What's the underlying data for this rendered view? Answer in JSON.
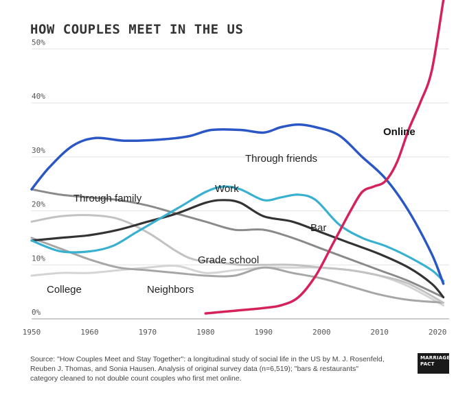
{
  "title": "HOW COUPLES MEET IN THE US",
  "source_text": "Source: \"How Couples Meet and Stay Together\": a longitudinal study of social life in the US by M. J. Rosenfeld, Reuben J. Thomas, and Sonia Hausen. Analysis of original survey data (n=6,519); \"bars & restaurants\" category cleaned to not double count couples who first met online.",
  "logo": {
    "line1": "MARRIAGE",
    "line2": "PACT"
  },
  "chart_data": {
    "type": "line",
    "title": "HOW COUPLES MEET IN THE US",
    "xlabel": "",
    "ylabel": "",
    "xlim": [
      1950,
      2022
    ],
    "ylim": [
      0,
      55
    ],
    "x_ticks": [
      1950,
      1960,
      1970,
      1980,
      1990,
      2000,
      2010,
      2020
    ],
    "y_ticks": [
      0,
      10,
      20,
      30,
      40,
      50
    ],
    "y_tick_labels": [
      "0%",
      "10%",
      "20%",
      "30%",
      "40%",
      "50%"
    ],
    "grid": "horizontal",
    "series": [
      {
        "name": "Online",
        "label": "Online",
        "color": "#d6225a",
        "width": 3.5,
        "bold": true,
        "x": [
          1980,
          1985,
          1990,
          1993,
          1996,
          1999,
          2002,
          2005,
          2007,
          2009,
          2011,
          2013,
          2015,
          2017,
          2019,
          2021
        ],
        "y": [
          1,
          1.5,
          2,
          2.5,
          4,
          8,
          14,
          20,
          23.5,
          24.5,
          25.5,
          29,
          35,
          40,
          46,
          59
        ]
      },
      {
        "name": "Through friends",
        "label": "Through friends",
        "color": "#2a56c6",
        "width": 3.5,
        "x": [
          1950,
          1953,
          1957,
          1961,
          1966,
          1972,
          1977,
          1981,
          1986,
          1990,
          1993,
          1996,
          1999,
          2003,
          2007,
          2011,
          2015,
          2019,
          2021
        ],
        "y": [
          24,
          28,
          32,
          33.5,
          33,
          33.2,
          33.8,
          35,
          35,
          34.5,
          35.5,
          36,
          35.5,
          34,
          30,
          26,
          20,
          12,
          6.5
        ]
      },
      {
        "name": "Work",
        "label": "Work",
        "color": "#38b0d0",
        "width": 3.2,
        "x": [
          1950,
          1955,
          1960,
          1964,
          1968,
          1972,
          1976,
          1980,
          1983,
          1986,
          1990,
          1993,
          1996,
          1999,
          2003,
          2007,
          2011,
          2015,
          2019,
          2021
        ],
        "y": [
          14.5,
          12.5,
          12.5,
          13.5,
          16,
          18.5,
          21,
          23.5,
          24.5,
          24,
          22,
          22.5,
          23,
          22,
          17.5,
          15,
          13.5,
          11.5,
          9,
          7
        ]
      },
      {
        "name": "Bar",
        "label": "Bar",
        "color": "#333333",
        "width": 3.2,
        "x": [
          1950,
          1955,
          1960,
          1965,
          1970,
          1975,
          1980,
          1983,
          1986,
          1990,
          1995,
          2000,
          2005,
          2010,
          2015,
          2019,
          2021
        ],
        "y": [
          14.5,
          15,
          15.5,
          16.5,
          18,
          19.5,
          21.5,
          22,
          21.5,
          19,
          18,
          16,
          14,
          12,
          9.5,
          6.5,
          4
        ]
      },
      {
        "name": "Through family",
        "label": "Through family",
        "color": "#8a8a8a",
        "width": 3,
        "x": [
          1950,
          1955,
          1960,
          1965,
          1970,
          1975,
          1980,
          1985,
          1990,
          1995,
          2000,
          2005,
          2010,
          2015,
          2021
        ],
        "y": [
          24,
          23,
          22.5,
          22,
          21,
          19.5,
          18,
          16.5,
          16.5,
          15,
          13,
          11,
          9,
          7,
          4
        ]
      },
      {
        "name": "Grade school",
        "label": "Grade school",
        "color": "#c2c2c2",
        "width": 3,
        "x": [
          1950,
          1955,
          1960,
          1965,
          1970,
          1975,
          1978,
          1982,
          1986,
          1990,
          1995,
          2000,
          2005,
          2010,
          2015,
          2021
        ],
        "y": [
          18,
          19,
          19.2,
          18.5,
          16,
          12.5,
          11,
          10.5,
          10,
          10,
          10,
          9.5,
          9,
          8,
          6.5,
          3
        ]
      },
      {
        "name": "College",
        "label": "College",
        "color": "#d4d4d4",
        "width": 3,
        "x": [
          1950,
          1955,
          1960,
          1965,
          1970,
          1975,
          1980,
          1985,
          1990,
          1995,
          2000,
          2005,
          2010,
          2015,
          2021
        ],
        "y": [
          8,
          8.5,
          8.5,
          9,
          9.5,
          9.8,
          8.5,
          9,
          9.5,
          9.5,
          9.5,
          9,
          8,
          6,
          2.5
        ]
      },
      {
        "name": "Neighbors",
        "label": "Neighbors",
        "color": "#a6a6a6",
        "width": 3,
        "x": [
          1950,
          1955,
          1960,
          1965,
          1970,
          1975,
          1980,
          1985,
          1990,
          1995,
          2000,
          2005,
          2010,
          2015,
          2021
        ],
        "y": [
          15,
          13,
          11,
          9.5,
          9,
          8.5,
          8,
          8,
          9.5,
          8.5,
          7.5,
          6,
          4.5,
          3.5,
          3
        ]
      }
    ]
  }
}
